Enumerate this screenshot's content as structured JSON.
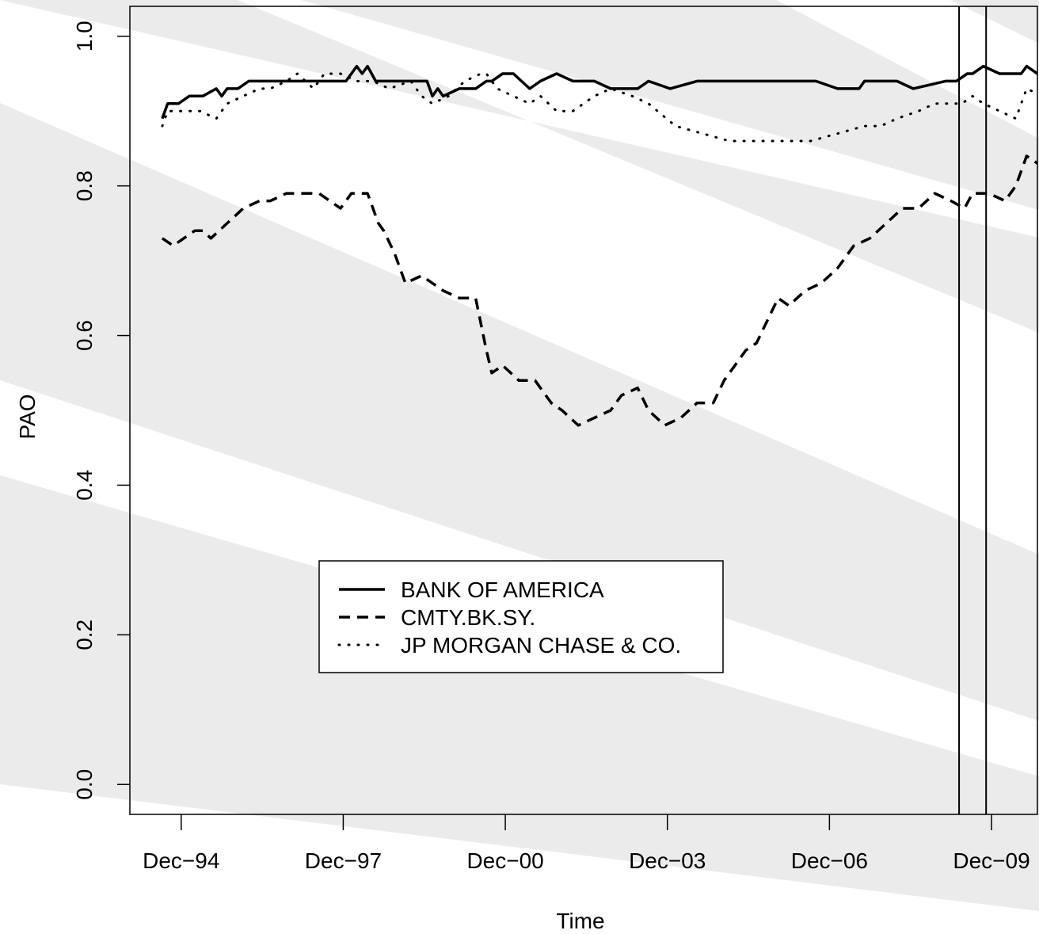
{
  "chart_data": {
    "type": "line",
    "title": "",
    "xlabel": "Time",
    "ylabel": "PAO",
    "x_ticks": [
      "Dec−94",
      "Dec−97",
      "Dec−00",
      "Dec−03",
      "Dec−06",
      "Dec−09"
    ],
    "y_ticks": [
      "0.0",
      "0.2",
      "0.4",
      "0.6",
      "0.8",
      "1.0"
    ],
    "xlim": [
      1993.4,
      2010.2
    ],
    "ylim": [
      -0.04,
      1.04
    ],
    "grid": false,
    "legend_position": "center-left",
    "vlines": [
      2008.75,
      2009.25
    ],
    "series": [
      {
        "name": "BANK OF AMERICA",
        "line_style": "solid",
        "x": [
          1994.0,
          1994.1,
          1994.3,
          1994.5,
          1994.75,
          1995.0,
          1995.1,
          1995.2,
          1995.4,
          1995.6,
          1995.8,
          1996.0,
          1996.5,
          1997.0,
          1997.4,
          1997.6,
          1997.7,
          1997.8,
          1997.95,
          1998.1,
          1998.5,
          1998.9,
          1999.0,
          1999.1,
          1999.2,
          1999.5,
          1999.8,
          2000.0,
          2000.1,
          2000.3,
          2000.5,
          2000.8,
          2001.0,
          2001.3,
          2001.6,
          2002.0,
          2002.3,
          2002.8,
          2003.0,
          2003.4,
          2003.9,
          2004.5,
          2005.0,
          2005.2,
          2005.6,
          2006.1,
          2006.5,
          2006.9,
          2007.0,
          2007.3,
          2007.6,
          2007.9,
          2008.5,
          2008.7,
          2008.9,
          2009.0,
          2009.2,
          2009.5,
          2009.7,
          2009.9,
          2010.0,
          2010.2,
          2010.5,
          2011.0
        ],
        "y": [
          0.89,
          0.91,
          0.91,
          0.92,
          0.92,
          0.93,
          0.92,
          0.93,
          0.93,
          0.94,
          0.94,
          0.94,
          0.94,
          0.94,
          0.94,
          0.96,
          0.95,
          0.96,
          0.94,
          0.94,
          0.94,
          0.94,
          0.92,
          0.93,
          0.92,
          0.93,
          0.93,
          0.94,
          0.94,
          0.95,
          0.95,
          0.93,
          0.94,
          0.95,
          0.94,
          0.94,
          0.93,
          0.93,
          0.94,
          0.93,
          0.94,
          0.94,
          0.94,
          0.94,
          0.94,
          0.94,
          0.93,
          0.93,
          0.94,
          0.94,
          0.94,
          0.93,
          0.94,
          0.94,
          0.95,
          0.95,
          0.96,
          0.95,
          0.95,
          0.95,
          0.96,
          0.95,
          0.95,
          0.95
        ]
      },
      {
        "name": "CMTY.BK.SY.",
        "line_style": "dashed",
        "x": [
          1994.0,
          1994.2,
          1994.6,
          1994.75,
          1994.9,
          1995.2,
          1995.5,
          1995.8,
          1996.0,
          1996.3,
          1996.6,
          1996.9,
          1997.3,
          1997.5,
          1997.8,
          1998.0,
          1998.1,
          1998.3,
          1998.5,
          1998.8,
          1999.0,
          1999.2,
          1999.5,
          1999.8,
          2000.0,
          2000.1,
          2000.3,
          2000.6,
          2000.9,
          2001.2,
          2001.4,
          2001.7,
          2002.0,
          2002.3,
          2002.5,
          2002.8,
          2003.0,
          2003.3,
          2003.6,
          2003.9,
          2004.2,
          2004.4,
          2004.6,
          2004.8,
          2005.0,
          2005.2,
          2005.4,
          2005.6,
          2005.9,
          2006.2,
          2006.5,
          2006.8,
          2007.1,
          2007.4,
          2007.7,
          2008.0,
          2008.3,
          2008.6,
          2008.85,
          2009.0,
          2009.3,
          2009.6,
          2009.8,
          2010.0,
          2010.2,
          2010.5,
          2010.8,
          2011.0
        ],
        "y": [
          0.73,
          0.72,
          0.74,
          0.74,
          0.73,
          0.75,
          0.77,
          0.78,
          0.78,
          0.79,
          0.79,
          0.79,
          0.77,
          0.79,
          0.79,
          0.75,
          0.74,
          0.71,
          0.67,
          0.68,
          0.67,
          0.66,
          0.65,
          0.65,
          0.58,
          0.55,
          0.56,
          0.54,
          0.54,
          0.51,
          0.5,
          0.48,
          0.49,
          0.5,
          0.52,
          0.53,
          0.5,
          0.48,
          0.49,
          0.51,
          0.51,
          0.54,
          0.56,
          0.58,
          0.59,
          0.62,
          0.65,
          0.64,
          0.66,
          0.67,
          0.69,
          0.72,
          0.73,
          0.75,
          0.77,
          0.77,
          0.79,
          0.78,
          0.77,
          0.79,
          0.79,
          0.78,
          0.8,
          0.84,
          0.83,
          0.87,
          0.89,
          0.9
        ]
      },
      {
        "name": "JP MORGAN CHASE & CO.",
        "line_style": "dotted",
        "x": [
          1994.0,
          1994.1,
          1994.4,
          1994.7,
          1995.0,
          1995.2,
          1995.5,
          1995.8,
          1996.0,
          1996.3,
          1996.5,
          1996.8,
          1997.0,
          1997.3,
          1997.6,
          1997.9,
          1998.2,
          1998.6,
          1998.8,
          1999.0,
          1999.3,
          1999.6,
          1999.9,
          2000.0,
          2000.2,
          2000.5,
          2000.8,
          2001.0,
          2001.3,
          2001.6,
          2002.0,
          2002.3,
          2002.7,
          2003.0,
          2003.5,
          2004.0,
          2004.5,
          2005.0,
          2005.5,
          2006.0,
          2006.5,
          2007.0,
          2007.3,
          2007.6,
          2008.0,
          2008.3,
          2008.6,
          2008.8,
          2009.0,
          2009.2,
          2009.5,
          2009.8,
          2010.0,
          2010.3,
          2010.6,
          2011.0
        ],
        "y": [
          0.88,
          0.9,
          0.9,
          0.9,
          0.89,
          0.91,
          0.92,
          0.93,
          0.93,
          0.94,
          0.95,
          0.93,
          0.95,
          0.95,
          0.94,
          0.94,
          0.93,
          0.94,
          0.92,
          0.91,
          0.92,
          0.94,
          0.95,
          0.95,
          0.93,
          0.92,
          0.91,
          0.92,
          0.9,
          0.9,
          0.92,
          0.93,
          0.92,
          0.91,
          0.88,
          0.87,
          0.86,
          0.86,
          0.86,
          0.86,
          0.87,
          0.88,
          0.88,
          0.89,
          0.9,
          0.91,
          0.91,
          0.91,
          0.92,
          0.91,
          0.9,
          0.89,
          0.93,
          0.92,
          0.9,
          0.94
        ]
      }
    ]
  }
}
